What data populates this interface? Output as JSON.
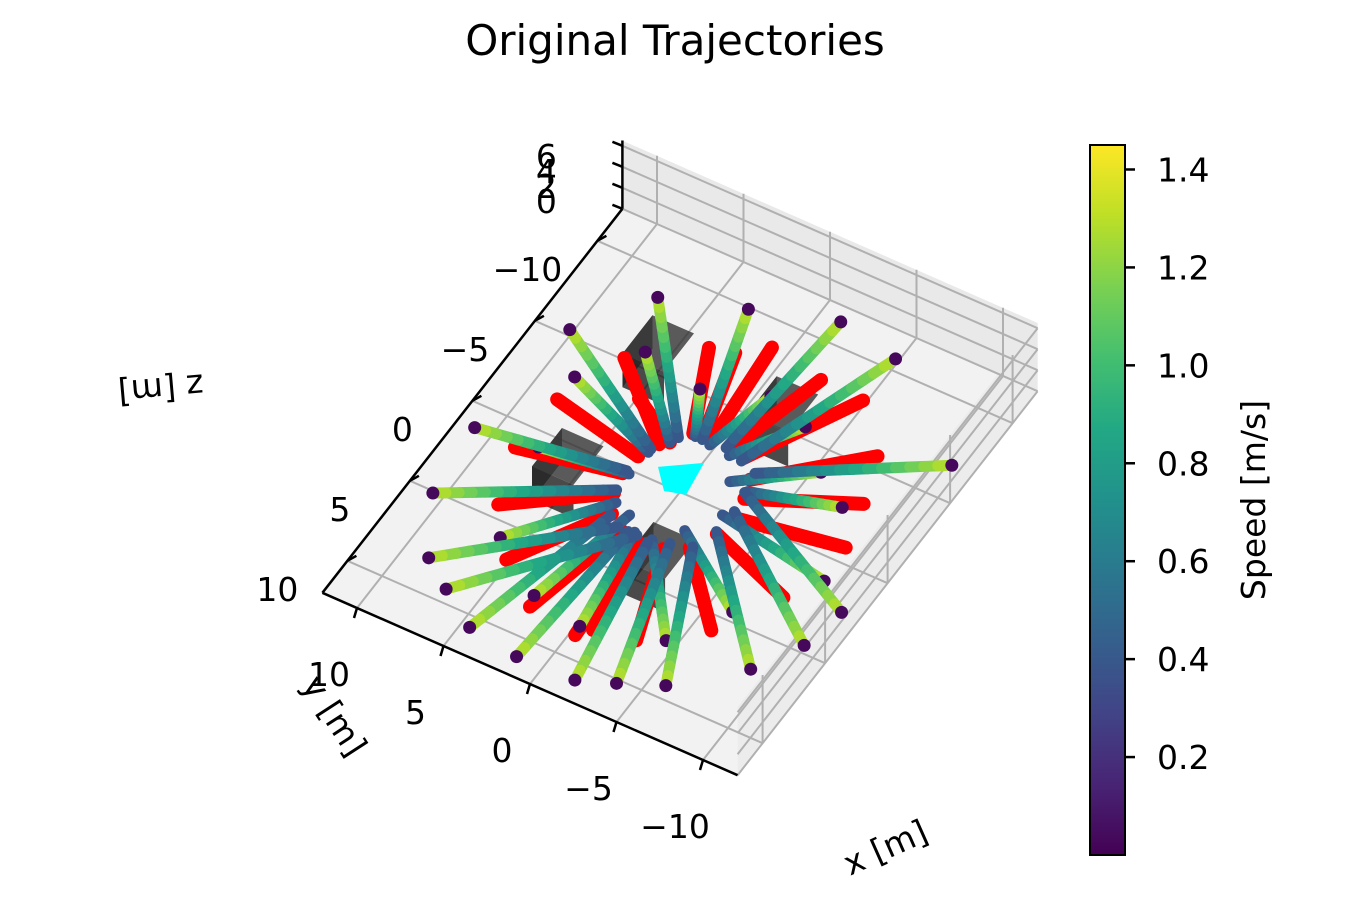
{
  "chart_data": {
    "type": "scatter",
    "projection": "3d",
    "title": "Original Trajectories",
    "xlabel": "x [m]",
    "ylabel": "y [m]",
    "zlabel": "z [m]",
    "xlim": [
      -12,
      12
    ],
    "ylim": [
      -12,
      12
    ],
    "zlim": [
      0,
      6.5
    ],
    "x_ticks": [
      -10,
      -5,
      0,
      5,
      10
    ],
    "y_ticks": [
      -10,
      -5,
      0,
      5,
      10
    ],
    "z_ticks": [
      0,
      2,
      4,
      6
    ],
    "x_tick_labels": [
      "−10",
      "−5",
      "0",
      "5",
      "10"
    ],
    "y_tick_labels": [
      "−10",
      "−5",
      "0",
      "5",
      "10"
    ],
    "z_tick_labels": [
      "0",
      "2",
      "4",
      "6"
    ],
    "grid": true,
    "colorbar": {
      "label": "Speed [m/s]",
      "colormap": "viridis",
      "min": 0.0,
      "max": 1.45,
      "ticks": [
        0.2,
        0.4,
        0.6,
        0.8,
        1.0,
        1.2,
        1.4
      ],
      "tick_labels": [
        "0.2",
        "0.4",
        "0.6",
        "0.8",
        "1.0",
        "1.2",
        "1.4"
      ]
    },
    "colors": {
      "agents": "#ff0000",
      "obstacles": "#000000",
      "goal_marker": "#00ffff",
      "pane": "#f2f2f2",
      "grid": "#b0b0b0"
    },
    "trajectories": [
      {
        "start": [
          1.2,
          -2.9
        ],
        "end": [
          2.6,
          -5.2
        ]
      },
      {
        "start": [
          0.3,
          -2.8
        ],
        "end": [
          -0.7,
          -6.3
        ]
      },
      {
        "start": [
          -0.9,
          -2.7
        ],
        "end": [
          -3.2,
          -5.6
        ]
      },
      {
        "start": [
          -1.8,
          -1.5
        ],
        "end": [
          -5.4,
          -3.8
        ]
      },
      {
        "start": [
          -2.9,
          -1.4
        ],
        "end": [
          -7.5,
          -2.6
        ]
      },
      {
        "start": [
          -2.6,
          0.2
        ],
        "end": [
          -9.2,
          1.2
        ]
      },
      {
        "start": [
          -1.5,
          1.7
        ],
        "end": [
          -6.3,
          4.5
        ]
      },
      {
        "start": [
          -0.4,
          2.8
        ],
        "end": [
          -4.4,
          7.2
        ]
      },
      {
        "start": [
          0.6,
          2.8
        ],
        "end": [
          -0.2,
          8.3
        ]
      },
      {
        "start": [
          1.4,
          2.1
        ],
        "end": [
          2.8,
          7.8
        ]
      },
      {
        "start": [
          2.4,
          1.8
        ],
        "end": [
          6.2,
          5.8
        ]
      },
      {
        "start": [
          2.8,
          0.2
        ],
        "end": [
          7.6,
          0.8
        ]
      },
      {
        "start": [
          2.7,
          -1.2
        ],
        "end": [
          8.4,
          -3.2
        ]
      },
      {
        "start": [
          2.1,
          -2.1
        ],
        "end": [
          6.2,
          -5.8
        ]
      },
      {
        "start": [
          2.2,
          2.5
        ],
        "end": [
          4.5,
          10.6
        ]
      },
      {
        "start": [
          0.9,
          2.9
        ],
        "end": [
          1.5,
          11.0
        ]
      },
      {
        "start": [
          -0.3,
          3.0
        ],
        "end": [
          -1.8,
          10.9
        ]
      },
      {
        "start": [
          -1.3,
          2.6
        ],
        "end": [
          -3.7,
          10.2
        ]
      },
      {
        "start": [
          -2.4,
          2.3
        ],
        "end": [
          -5.9,
          9.3
        ]
      },
      {
        "start": [
          -2.9,
          1.1
        ],
        "end": [
          -9.0,
          6.8
        ]
      },
      {
        "start": [
          -3.0,
          -0.2
        ],
        "end": [
          -10.5,
          4.6
        ]
      },
      {
        "start": [
          -2.8,
          -1.3
        ],
        "end": [
          -11.0,
          2.3
        ]
      },
      {
        "start": [
          -2.6,
          -2.4
        ],
        "end": [
          -10.8,
          -6.8
        ]
      },
      {
        "start": [
          -1.6,
          -2.7
        ],
        "end": [
          -4.8,
          -10.6
        ]
      },
      {
        "start": [
          -0.5,
          -3.0
        ],
        "end": [
          -1.2,
          -11.2
        ]
      },
      {
        "start": [
          0.8,
          -2.9
        ],
        "end": [
          3.2,
          -9.9
        ]
      },
      {
        "start": [
          1.9,
          -2.5
        ],
        "end": [
          7.5,
          -8.6
        ]
      },
      {
        "start": [
          2.7,
          -1.4
        ],
        "end": [
          10.2,
          -5.3
        ]
      },
      {
        "start": [
          3.0,
          0.1
        ],
        "end": [
          11.0,
          1.2
        ]
      },
      {
        "start": [
          2.8,
          1.2
        ],
        "end": [
          10.6,
          5.1
        ]
      },
      {
        "start": [
          1.5,
          2.9
        ],
        "end": [
          8.6,
          8.2
        ]
      },
      {
        "start": [
          0.4,
          2.9
        ],
        "end": [
          6.8,
          9.3
        ]
      }
    ],
    "agents": [
      {
        "start": [
          4.9,
          -3.5
        ],
        "end": [
          2.1,
          -2.1
        ]
      },
      {
        "start": [
          3.6,
          -7.3
        ],
        "end": [
          1.4,
          -3.0
        ]
      },
      {
        "start": [
          0.9,
          -8.6
        ],
        "end": [
          0.4,
          -3.4
        ]
      },
      {
        "start": [
          -2.3,
          -8.1
        ],
        "end": [
          -0.8,
          -3.3
        ]
      },
      {
        "start": [
          -4.8,
          -8.0
        ],
        "end": [
          -1.6,
          -2.9
        ]
      },
      {
        "start": [
          -7.3,
          -5.7
        ],
        "end": [
          -2.6,
          -2.0
        ]
      },
      {
        "start": [
          -8.3,
          -3.2
        ],
        "end": [
          -3.0,
          -1.0
        ]
      },
      {
        "start": [
          -9.0,
          -0.8
        ],
        "end": [
          -3.2,
          0.1
        ]
      },
      {
        "start": [
          -8.0,
          2.8
        ],
        "end": [
          -3.0,
          1.2
        ]
      },
      {
        "start": [
          -6.0,
          5.8
        ],
        "end": [
          -2.3,
          2.4
        ]
      },
      {
        "start": [
          -3.1,
          7.8
        ],
        "end": [
          -1.2,
          3.0
        ]
      },
      {
        "start": [
          -0.3,
          8.8
        ],
        "end": [
          0.1,
          3.2
        ]
      },
      {
        "start": [
          2.6,
          8.4
        ],
        "end": [
          1.2,
          3.0
        ]
      },
      {
        "start": [
          5.2,
          6.7
        ],
        "end": [
          2.2,
          2.4
        ]
      },
      {
        "start": [
          7.4,
          4.3
        ],
        "end": [
          2.8,
          1.4
        ]
      },
      {
        "start": [
          8.6,
          1.3
        ],
        "end": [
          3.1,
          0.3
        ]
      },
      {
        "start": [
          8.4,
          -1.8
        ],
        "end": [
          3.0,
          -0.8
        ]
      },
      {
        "start": [
          6.9,
          -5.1
        ],
        "end": [
          2.5,
          -1.8
        ]
      },
      {
        "start": [
          -0.9,
          8.2
        ],
        "end": [
          -0.3,
          3.1
        ]
      },
      {
        "start": [
          2.3,
          -7.6
        ],
        "end": [
          0.9,
          -3.2
        ]
      }
    ],
    "obstacles": [
      {
        "center": [
          -2.6,
          -4.6
        ],
        "size": [
          2.4,
          2.4
        ],
        "height": 3.2
      },
      {
        "center": [
          4.8,
          -4.9
        ],
        "size": [
          2.4,
          2.4
        ],
        "height": 3.2
      },
      {
        "center": [
          4.9,
          2.2
        ],
        "size": [
          2.4,
          2.4
        ],
        "height": 3.2
      },
      {
        "center": [
          -2.2,
          4.7
        ],
        "size": [
          2.4,
          2.4
        ],
        "height": 3.2
      }
    ]
  }
}
